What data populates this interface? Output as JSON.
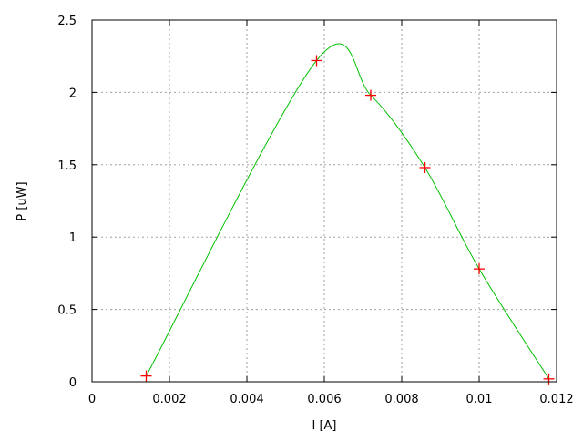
{
  "chart_data": {
    "type": "scatter",
    "title": "",
    "xlabel": "I [A]",
    "ylabel": "P [uW]",
    "xlim": [
      0,
      0.012
    ],
    "ylim": [
      0,
      2.5
    ],
    "grid": true,
    "xticks": [
      "0",
      "0.002",
      "0.004",
      "0.006",
      "0.008",
      "0.01",
      "0.012"
    ],
    "xtick_values": [
      0,
      0.002,
      0.004,
      0.006,
      0.008,
      0.01,
      0.012
    ],
    "yticks": [
      "0",
      "0.5",
      "1",
      "1.5",
      "2",
      "2.5"
    ],
    "ytick_values": [
      0,
      0.5,
      1,
      1.5,
      2,
      2.5
    ],
    "series": [
      {
        "marker": "plus",
        "color": "#ff0000",
        "x": [
          0.0014,
          0.0058,
          0.0072,
          0.0086,
          0.01,
          0.0118
        ],
        "y": [
          0.04,
          2.22,
          1.98,
          1.48,
          0.78,
          0.02
        ]
      }
    ],
    "curve": {
      "style": "smooth line",
      "color": "#00c000"
    },
    "grid_color": "#a0a0a0"
  }
}
